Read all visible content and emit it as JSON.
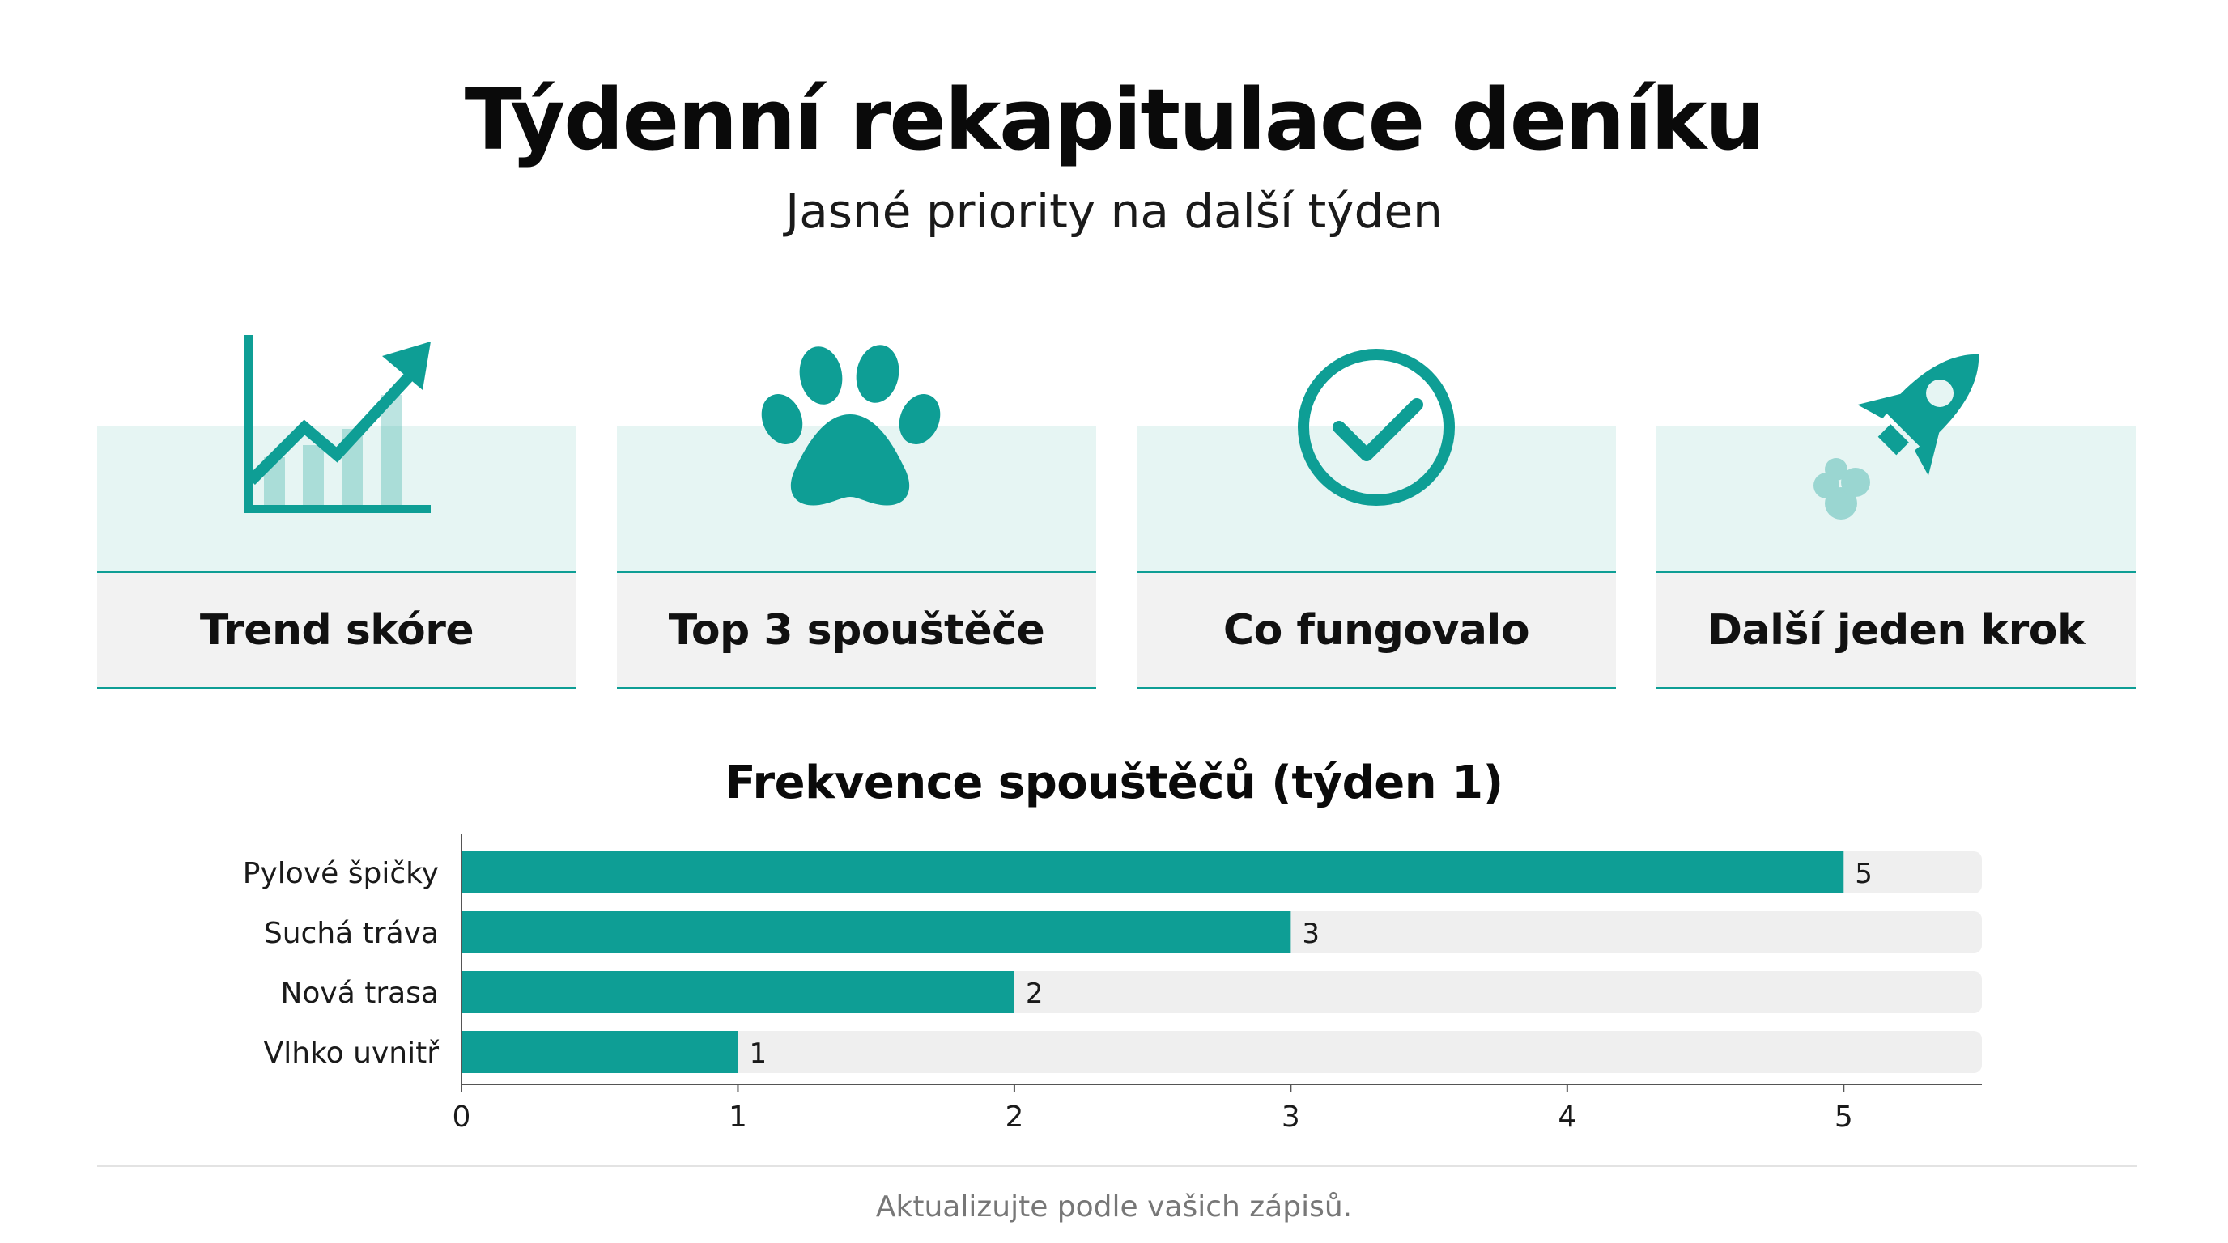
{
  "header": {
    "title": "Týdenní rekapitulace deníku",
    "subtitle": "Jasné priority na další týden"
  },
  "cards": [
    {
      "label": "Trend skóre",
      "icon": "trend-chart-icon"
    },
    {
      "label": "Top 3 spouštěče",
      "icon": "paw-icon"
    },
    {
      "label": "Co fungovalo",
      "icon": "check-circle-icon"
    },
    {
      "label": "Další jeden krok",
      "icon": "rocket-icon"
    }
  ],
  "colors": {
    "accent": "#0e9e95",
    "card_top_bg": "#e6f5f3",
    "card_bottom_bg": "#f2f2f2",
    "track_bg": "#efefef"
  },
  "chart_data": {
    "type": "bar",
    "orientation": "horizontal",
    "title": "Frekvence spouštěčů (týden 1)",
    "categories": [
      "Pylové špičky",
      "Suchá tráva",
      "Nová trasa",
      "Vlhko uvnitř"
    ],
    "values": [
      5,
      3,
      2,
      1
    ],
    "xlim": [
      0,
      5.5
    ],
    "xticks": [
      0,
      1,
      2,
      3,
      4,
      5
    ],
    "xlabel": "",
    "ylabel": "",
    "data_labels": true,
    "grid": false
  },
  "footer": {
    "note": "Aktualizujte podle vašich zápisů."
  }
}
